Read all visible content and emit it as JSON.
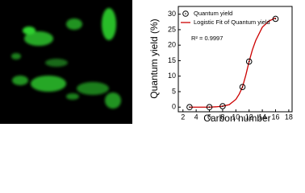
{
  "chart_data": {
    "type": "scatter",
    "x_label": "Carbon number",
    "y_label": "Quantum yield (%)",
    "annotation": "R² = 0.9997",
    "xlim": [
      1.3,
      18.5
    ],
    "xticks": [
      2,
      4,
      6,
      8,
      10,
      12,
      14,
      16,
      18
    ],
    "ylim": [
      -1.5,
      32.5
    ],
    "yticks": [
      0,
      5,
      10,
      15,
      20,
      25,
      30
    ],
    "legend": "upper left",
    "series": [
      {
        "name": "Quantum yield",
        "type": "scatter",
        "color": "#000000",
        "x": [
          3,
          6,
          8,
          11,
          12,
          16
        ],
        "values": [
          0,
          0,
          0.3,
          6.5,
          14.7,
          28.5
        ]
      },
      {
        "name": "Logistic Fit of Quantum yield",
        "type": "line",
        "color": "#cc0000",
        "x": [
          3,
          4,
          5,
          6,
          7,
          8,
          9,
          10,
          10.5,
          11,
          11.5,
          12,
          12.5,
          13,
          14,
          15,
          16
        ],
        "values": [
          0,
          0,
          0,
          0,
          0.1,
          0.3,
          0.8,
          2.5,
          4.2,
          6.5,
          10.3,
          14.7,
          18.5,
          21.5,
          25.8,
          27.8,
          28.8
        ]
      }
    ]
  }
}
